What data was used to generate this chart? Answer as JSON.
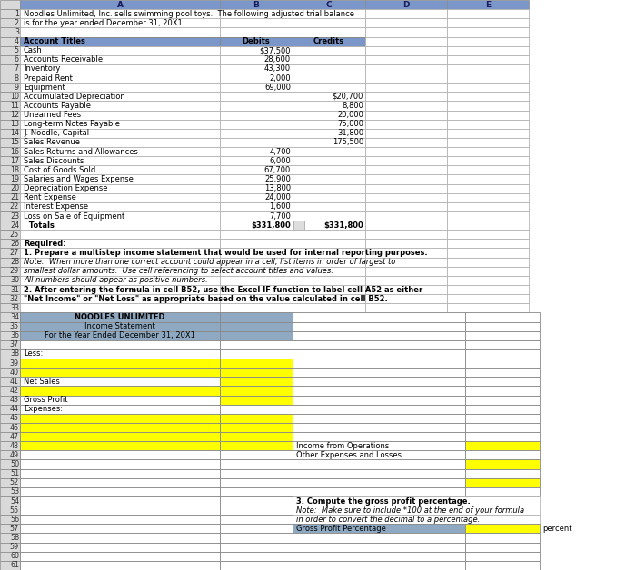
{
  "col_header_bg": "#7B96C9",
  "header_row_bg": "#7B96C9",
  "income_stmt_bg": "#8EA9C1",
  "yellow_fill": "#FFFF00",
  "row_num_bg": "#D9D9D9",
  "rows": [
    {
      "row": 1,
      "col_a": "Noodles Unlimited, Inc. sells swimming pool toys.  The following adjusted trial balance",
      "span": true
    },
    {
      "row": 2,
      "col_a": "is for the year ended December 31, 20X1.",
      "span": true
    },
    {
      "row": 3,
      "col_a": ""
    },
    {
      "row": 4,
      "col_a": "Account Titles",
      "col_b": "Debits",
      "col_c": "Credits",
      "header": true
    },
    {
      "row": 5,
      "col_a": "Cash",
      "col_b": "$37,500",
      "col_c": ""
    },
    {
      "row": 6,
      "col_a": "Accounts Receivable",
      "col_b": "28,600",
      "col_c": ""
    },
    {
      "row": 7,
      "col_a": "Inventory",
      "col_b": "43,300",
      "col_c": ""
    },
    {
      "row": 8,
      "col_a": "Prepaid Rent",
      "col_b": "2,000",
      "col_c": ""
    },
    {
      "row": 9,
      "col_a": "Equipment",
      "col_b": "69,000",
      "col_c": ""
    },
    {
      "row": 10,
      "col_a": "Accumulated Depreciation",
      "col_b": "",
      "col_c": "$20,700"
    },
    {
      "row": 11,
      "col_a": "Accounts Payable",
      "col_b": "",
      "col_c": "8,800"
    },
    {
      "row": 12,
      "col_a": "Unearned Fees",
      "col_b": "",
      "col_c": "20,000"
    },
    {
      "row": 13,
      "col_a": "Long-term Notes Payable",
      "col_b": "",
      "col_c": "75,000"
    },
    {
      "row": 14,
      "col_a": "J. Noodle, Capital",
      "col_b": "",
      "col_c": "31,800"
    },
    {
      "row": 15,
      "col_a": "Sales Revenue",
      "col_b": "",
      "col_c": "175,500"
    },
    {
      "row": 16,
      "col_a": "Sales Returns and Allowances",
      "col_b": "4,700",
      "col_c": ""
    },
    {
      "row": 17,
      "col_a": "Sales Discounts",
      "col_b": "6,000",
      "col_c": ""
    },
    {
      "row": 18,
      "col_a": "Cost of Goods Sold",
      "col_b": "67,700",
      "col_c": ""
    },
    {
      "row": 19,
      "col_a": "Salaries and Wages Expense",
      "col_b": "25,900",
      "col_c": ""
    },
    {
      "row": 20,
      "col_a": "Depreciation Expense",
      "col_b": "13,800",
      "col_c": ""
    },
    {
      "row": 21,
      "col_a": "Rent Expense",
      "col_b": "24,000",
      "col_c": ""
    },
    {
      "row": 22,
      "col_a": "Interest Expense",
      "col_b": "1,600",
      "col_c": ""
    },
    {
      "row": 23,
      "col_a": "Loss on Sale of Equipment",
      "col_b": "7,700",
      "col_c": ""
    },
    {
      "row": 24,
      "col_a": "  Totals",
      "col_b": "$331,800",
      "col_c": "$331,800",
      "bold": true,
      "totals": true
    },
    {
      "row": 25,
      "col_a": ""
    },
    {
      "row": 26,
      "col_a": "Required:",
      "bold": true,
      "span": true
    },
    {
      "row": 27,
      "col_a": "1. Prepare a multistep income statement that would be used for internal reporting purposes.",
      "bold": true,
      "span": true
    },
    {
      "row": 28,
      "col_a": "Note:  When more than one correct account could appear in a cell, list items in order of largest to",
      "italic": true,
      "span": true
    },
    {
      "row": 29,
      "col_a": "smallest dollar amounts.  Use cell referencing to select account titles and values.",
      "italic": true,
      "span": true
    },
    {
      "row": 30,
      "col_a": "All numbers should appear as positive numbers.",
      "italic": true,
      "span": true
    },
    {
      "row": 31,
      "col_a": "2. After entering the formula in cell B52, use the Excel IF function to label cell A52 as either",
      "bold": true,
      "span": true
    },
    {
      "row": 32,
      "col_a": "\"Net Income\" or \"Net Loss\" as appropriate based on the value calculated in cell B52.",
      "bold": true,
      "span": true
    },
    {
      "row": 33,
      "col_a": ""
    }
  ],
  "left_rows": [
    {
      "row": 34,
      "col_a": "NOODLES UNLIMITED",
      "bold": true,
      "center": true,
      "blue": true
    },
    {
      "row": 35,
      "col_a": "Income Statement",
      "bold": false,
      "center": true,
      "blue": true
    },
    {
      "row": 36,
      "col_a": "For the Year Ended December 31, 20X1",
      "bold": false,
      "center": true,
      "blue": true
    },
    {
      "row": 37,
      "col_a": "",
      "yellow_a": false,
      "yellow_b": false
    },
    {
      "row": 38,
      "col_a": "Less:",
      "yellow_a": false,
      "yellow_b": false
    },
    {
      "row": 39,
      "col_a": "",
      "yellow_a": true,
      "yellow_b": true
    },
    {
      "row": 40,
      "col_a": "",
      "yellow_a": true,
      "yellow_b": true
    },
    {
      "row": 41,
      "col_a": "Net Sales",
      "yellow_a": false,
      "yellow_b": true
    },
    {
      "row": 42,
      "col_a": "",
      "yellow_a": true,
      "yellow_b": true
    },
    {
      "row": 43,
      "col_a": "Gross Profit",
      "yellow_a": false,
      "yellow_b": true
    },
    {
      "row": 44,
      "col_a": "Expenses:",
      "yellow_a": false,
      "yellow_b": false
    },
    {
      "row": 45,
      "col_a": "",
      "yellow_a": true,
      "yellow_b": true
    },
    {
      "row": 46,
      "col_a": "",
      "yellow_a": true,
      "yellow_b": true
    },
    {
      "row": 47,
      "col_a": "",
      "yellow_a": true,
      "yellow_b": true
    }
  ],
  "right_rows": [
    {
      "row": 34,
      "col_a": "",
      "yellow_a": false,
      "yellow_b": false
    },
    {
      "row": 35,
      "col_a": "",
      "yellow_a": false,
      "yellow_b": false
    },
    {
      "row": 36,
      "col_a": "",
      "yellow_a": false,
      "yellow_b": false
    },
    {
      "row": 37,
      "col_a": "",
      "yellow_a": false,
      "yellow_b": false
    },
    {
      "row": 38,
      "col_a": "",
      "yellow_a": false,
      "yellow_b": false
    },
    {
      "row": 39,
      "col_a": "",
      "yellow_a": false,
      "yellow_b": false
    },
    {
      "row": 40,
      "col_a": "",
      "yellow_a": false,
      "yellow_b": false
    },
    {
      "row": 41,
      "col_a": "",
      "yellow_a": false,
      "yellow_b": false
    },
    {
      "row": 42,
      "col_a": "",
      "yellow_a": false,
      "yellow_b": false
    },
    {
      "row": 43,
      "col_a": "",
      "yellow_a": false,
      "yellow_b": false
    },
    {
      "row": 44,
      "col_a": "",
      "yellow_a": false,
      "yellow_b": false
    },
    {
      "row": 45,
      "col_a": "",
      "yellow_a": false,
      "yellow_b": false
    },
    {
      "row": 46,
      "col_a": "",
      "yellow_a": false,
      "yellow_b": false
    },
    {
      "row": 47,
      "col_a": "",
      "yellow_a": false,
      "yellow_b": false
    },
    {
      "row": 48,
      "col_a": "Income from Operations",
      "yellow_b": true
    },
    {
      "row": 49,
      "col_a": "Other Expenses and Losses",
      "yellow_b": false
    },
    {
      "row": 50,
      "col_a": "",
      "yellow_a": false,
      "yellow_b": true
    },
    {
      "row": 51,
      "col_a": "",
      "yellow_a": false,
      "yellow_b": false
    },
    {
      "row": 52,
      "col_a": "",
      "yellow_a": false,
      "yellow_b": true
    },
    {
      "row": 53,
      "col_a": "",
      "yellow_a": false,
      "yellow_b": false
    },
    {
      "row": 54,
      "col_a": "3. Compute the gross profit percentage.",
      "bold": true,
      "span": true
    },
    {
      "row": 55,
      "col_a": "Note:  Make sure to include *100 at the end of your formula",
      "italic": true,
      "span": true
    },
    {
      "row": 56,
      "col_a": "in order to convert the decimal to a percentage.",
      "italic": true,
      "span": true
    },
    {
      "row": 57,
      "col_a": "Gross Profit Percentage",
      "blue_a": true,
      "yellow_b": true,
      "suffix": "percent"
    },
    {
      "row": 58,
      "col_a": "",
      "yellow_a": false,
      "yellow_b": false
    },
    {
      "row": 59,
      "col_a": "",
      "yellow_a": false,
      "yellow_b": false
    },
    {
      "row": 60,
      "col_a": "",
      "yellow_a": false,
      "yellow_b": false
    },
    {
      "row": 61,
      "col_a": "",
      "yellow_a": false,
      "yellow_b": false
    }
  ],
  "left_rows_48_61": [
    {
      "row": 48,
      "col_a": "",
      "yellow_a": true,
      "yellow_b": true
    },
    {
      "row": 49,
      "col_a": "",
      "yellow_a": false,
      "yellow_b": false
    },
    {
      "row": 50,
      "col_a": "",
      "yellow_a": false,
      "yellow_b": false
    },
    {
      "row": 51,
      "col_a": "",
      "yellow_a": false,
      "yellow_b": false
    },
    {
      "row": 52,
      "col_a": "",
      "yellow_a": false,
      "yellow_b": false
    },
    {
      "row": 53,
      "col_a": "",
      "yellow_a": false,
      "yellow_b": false
    },
    {
      "row": 54,
      "col_a": "",
      "yellow_a": false,
      "yellow_b": false
    },
    {
      "row": 55,
      "col_a": "",
      "yellow_a": false,
      "yellow_b": false
    },
    {
      "row": 56,
      "col_a": "",
      "yellow_a": false,
      "yellow_b": false
    },
    {
      "row": 57,
      "col_a": "",
      "yellow_a": false,
      "yellow_b": false
    },
    {
      "row": 58,
      "col_a": "",
      "yellow_a": false,
      "yellow_b": false
    },
    {
      "row": 59,
      "col_a": "",
      "yellow_a": false,
      "yellow_b": false
    },
    {
      "row": 60,
      "col_a": "",
      "yellow_a": false,
      "yellow_b": false
    },
    {
      "row": 61,
      "col_a": "",
      "yellow_a": false,
      "yellow_b": false
    }
  ]
}
